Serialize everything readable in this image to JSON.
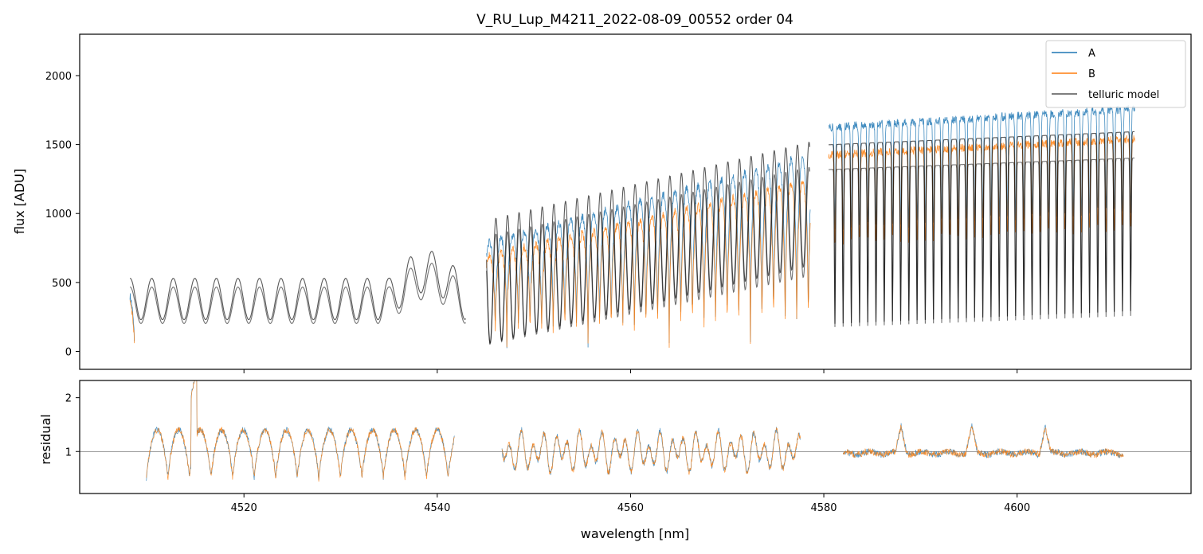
{
  "chart_data": [
    {
      "type": "line",
      "title": "V_RU_Lup_M4211_2022-08-09_00552  order 04",
      "xlabel": "",
      "ylabel": "flux [ADU]",
      "xlim": [
        4503.0,
        4618.0
      ],
      "ylim": [
        -130,
        2300
      ],
      "yticks": [
        0,
        500,
        1000,
        1500,
        2000
      ],
      "xticks": [
        4520,
        4540,
        4560,
        4580,
        4600
      ],
      "legend": {
        "placement": "top-right",
        "entries": [
          "A",
          "B",
          "telluric model"
        ]
      },
      "series": [
        {
          "name": "A",
          "color": "#1f77b4"
        },
        {
          "name": "B",
          "color": "#ff7f0e"
        },
        {
          "name": "telluric model",
          "color": "#000000"
        }
      ],
      "segments": [
        [
          4508.2,
          4543.0
        ],
        [
          4545.1,
          4578.6
        ],
        [
          4580.5,
          4612.2
        ]
      ]
    },
    {
      "type": "line",
      "xlabel": "wavelength [nm]",
      "ylabel": "residual",
      "xlim": [
        4503.0,
        4618.0
      ],
      "ylim": [
        0.22,
        2.32
      ],
      "yticks": [
        1,
        2
      ],
      "xticks": [
        4520,
        4540,
        4560,
        4580,
        4600
      ],
      "reference_line": 1,
      "series": [
        {
          "name": "A",
          "color": "#1f77b4"
        },
        {
          "name": "B",
          "color": "#ff7f0e"
        }
      ],
      "segments": [
        [
          4509.9,
          4541.8
        ],
        [
          4546.7,
          4577.6
        ],
        [
          4582.0,
          4611.0
        ]
      ]
    }
  ],
  "labels": {
    "title": "V_RU_Lup_M4211_2022-08-09_00552  order 04",
    "ylabel_top": "flux [ADU]",
    "ylabel_bottom": "residual",
    "xlabel": "wavelength [nm]",
    "legend": [
      "A",
      "B",
      "telluric model"
    ],
    "yticks_top": [
      "0",
      "500",
      "1000",
      "1500",
      "2000"
    ],
    "yticks_bottom": [
      "1",
      "2"
    ],
    "xticks": [
      "4520",
      "4540",
      "4560",
      "4580",
      "4600"
    ]
  }
}
